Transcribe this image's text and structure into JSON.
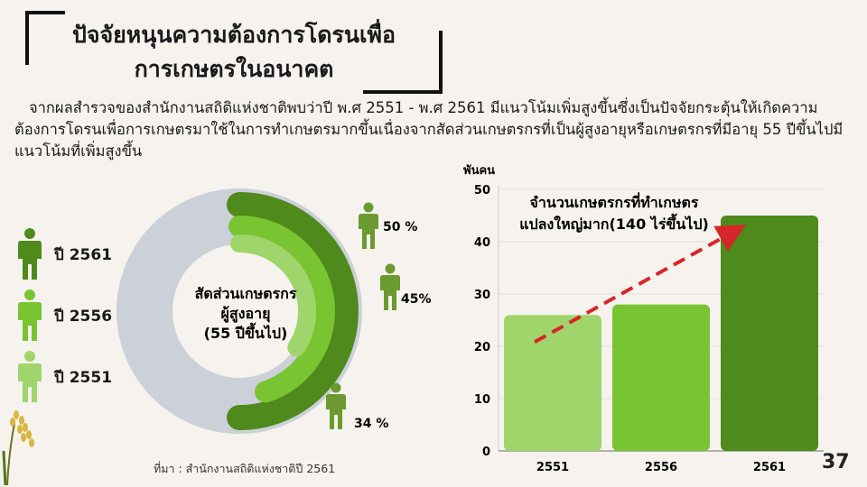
{
  "title": {
    "line1": "ปัจจัยหนุนความต้องการโดรนเพื่อ",
    "line2": "การเกษตรในอนาคต"
  },
  "intro": "จากผลสำรวจของสำนักงานสถิติแห่งชาติพบว่าปี พ.ศ 2551 - พ.ศ 2561 มีแนวโน้มเพิ่มสูงขึ้นซึ่งเป็นปัจจัยกระตุ้นให้เกิดความต้องการโดรนเพื่อการเกษตรมาใช้ในการทำเกษตรมากขึ้นเนื่องจากสัดส่วนเกษตรกรที่เป็นผู้สูงอายุหรือเกษตรกรที่มีอายุ 55 ปีขึ้นไปมีแนวโน้มที่เพิ่มสูงขึ้น",
  "legend": [
    {
      "label": "ปี 2561",
      "color": "#4f8a1c"
    },
    {
      "label": "ปี 2556",
      "color": "#79c431"
    },
    {
      "label": "ปี 2551",
      "color": "#9fd56a"
    }
  ],
  "source": "ที่มา : สำนักงานสถิติแห่งชาติปี 2561",
  "page_number": "37",
  "colors": {
    "track": "#ccd0d8",
    "arrow": "#d7262a",
    "figure": "#6a9a30"
  },
  "chart_data": [
    {
      "type": "pie",
      "center_label": [
        "สัดส่วนเกษตรกร",
        "ผู้สูงอายุ",
        "(55 ปีขึ้นไป)"
      ],
      "series": [
        {
          "name": "ปี 2561",
          "value": 50,
          "label": "50 %"
        },
        {
          "name": "ปี 2556",
          "value": 45,
          "label": "45%"
        },
        {
          "name": "ปี 2551",
          "value": 34,
          "label": "34 %"
        }
      ]
    },
    {
      "type": "bar",
      "title": "จำนวนเกษตรกรที่ทำเกษตร แปลงใหญ่มาก(140 ไร่ขึ้นไป)",
      "ylabel": "พันคน",
      "categories": [
        "2551",
        "2556",
        "2561"
      ],
      "values": [
        26,
        28,
        45
      ],
      "ylim": [
        0,
        50
      ],
      "yticks": [
        0,
        10,
        20,
        30,
        40,
        50
      ],
      "colors": [
        "#9fd56a",
        "#79c431",
        "#4f8a1c"
      ],
      "grid": true,
      "trend_arrow": true
    }
  ]
}
